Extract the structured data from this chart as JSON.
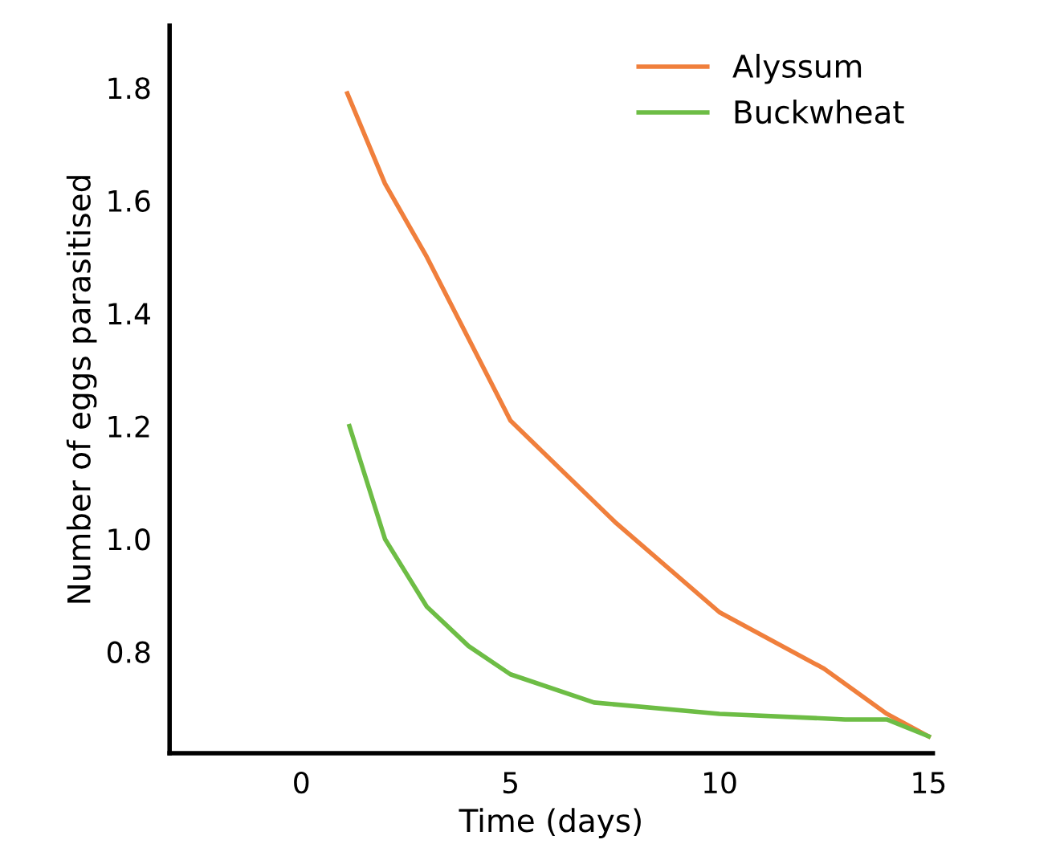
{
  "chart_data": {
    "type": "line",
    "xlabel": "Time (days)",
    "ylabel": "Number of eggs parasitised",
    "xlim": [
      -3.15,
      15.1
    ],
    "ylim": [
      0.62,
      1.91
    ],
    "xticks": [
      0,
      5,
      10,
      15
    ],
    "yticks": [
      {
        "value": 0.8,
        "label": "0.8"
      },
      {
        "value": 1.0,
        "label": "1.0"
      },
      {
        "value": 1.2,
        "label": "1.2"
      },
      {
        "value": 1.4,
        "label": "1.4"
      },
      {
        "value": 1.6,
        "label": "1.6"
      },
      {
        "value": 1.8,
        "label": "1.8"
      }
    ],
    "grid": false,
    "legend": "top right",
    "marker": "none",
    "line_style": "solid",
    "series": [
      {
        "name": "Alyssum",
        "color": "#f07f3c",
        "x": [
          1.1,
          2,
          3,
          5,
          7.5,
          10,
          12.5,
          14,
          15
        ],
        "values": [
          1.79,
          1.63,
          1.5,
          1.21,
          1.03,
          0.87,
          0.77,
          0.69,
          0.65
        ]
      },
      {
        "name": "Buckwheat",
        "color": "#6dbd45",
        "x": [
          1.15,
          2,
          3,
          4,
          5,
          7,
          10,
          13,
          14,
          15
        ],
        "values": [
          1.2,
          1.0,
          0.88,
          0.81,
          0.76,
          0.71,
          0.69,
          0.68,
          0.68,
          0.65
        ]
      }
    ]
  }
}
